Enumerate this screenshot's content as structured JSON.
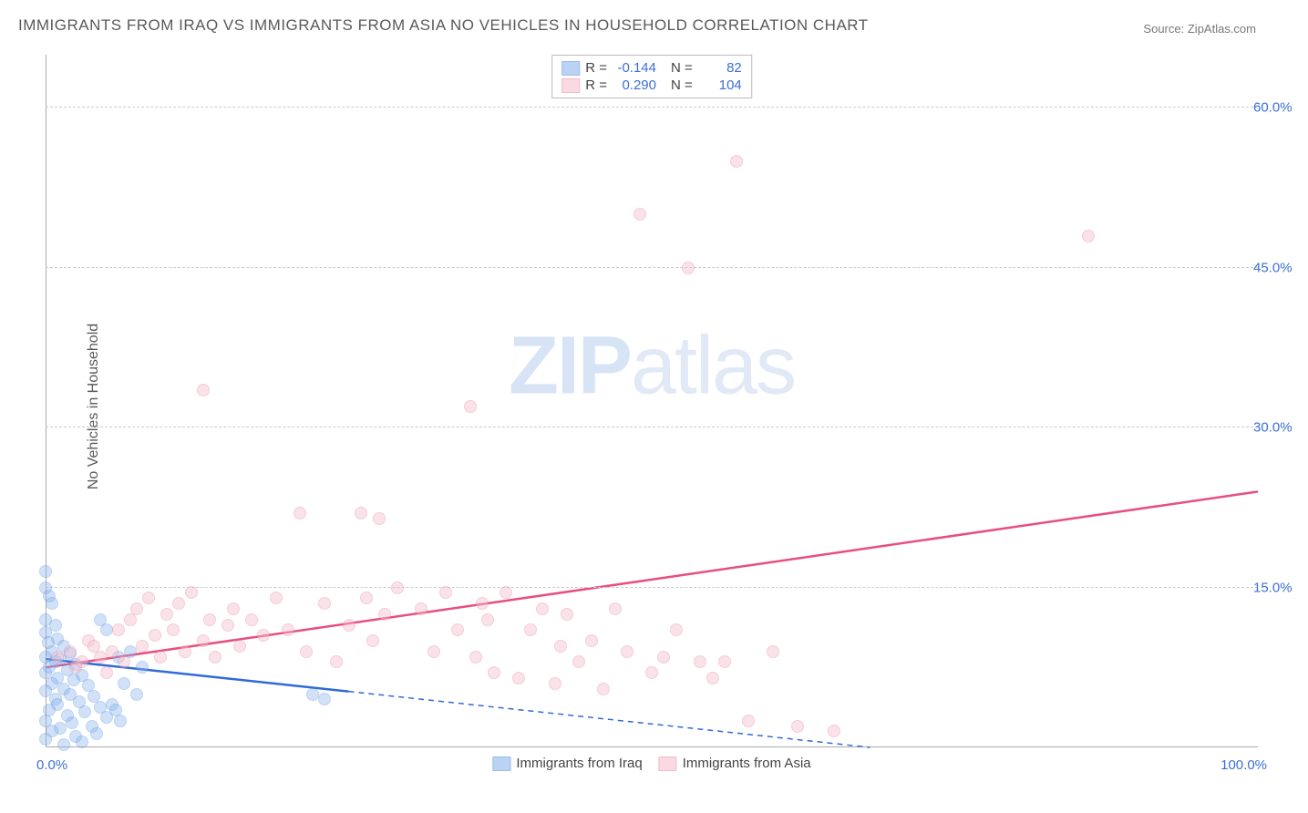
{
  "title": "IMMIGRANTS FROM IRAQ VS IMMIGRANTS FROM ASIA NO VEHICLES IN HOUSEHOLD CORRELATION CHART",
  "source_label": "Source:",
  "source_value": "ZipAtlas.com",
  "ylabel": "No Vehicles in Household",
  "watermark_bold": "ZIP",
  "watermark_rest": "atlas",
  "chart": {
    "type": "scatter",
    "xlim": [
      0,
      100
    ],
    "ylim": [
      0,
      65
    ],
    "xtick_min_label": "0.0%",
    "xtick_max_label": "100.0%",
    "yticks": [
      15.0,
      30.0,
      45.0,
      60.0
    ],
    "ytick_labels": [
      "15.0%",
      "30.0%",
      "45.0%",
      "60.0%"
    ],
    "grid_color": "#cccccc",
    "axis_color": "#aaaaaa",
    "background_color": "#ffffff",
    "marker_radius": 7,
    "series": [
      {
        "name": "Immigrants from Iraq",
        "fill_color": "#8db5ee",
        "fill_opacity": 0.4,
        "stroke_color": "#5a92e0",
        "line_color": "#2f6bd6",
        "line_dash": "6,5",
        "line_solid_until_x": 25,
        "R_label": "R =",
        "R_value": "-0.144",
        "N_label": "N =",
        "N_value": "82",
        "trend": {
          "x1": 0,
          "y1": 8.3,
          "x2": 68,
          "y2": 0
        },
        "points": [
          [
            0,
            16.5
          ],
          [
            0,
            15.0
          ],
          [
            0.3,
            14.2
          ],
          [
            0.5,
            13.5
          ],
          [
            0,
            12.0
          ],
          [
            0.8,
            11.5
          ],
          [
            0,
            10.8
          ],
          [
            1,
            10.2
          ],
          [
            0.2,
            9.8
          ],
          [
            1.5,
            9.5
          ],
          [
            0.5,
            9.0
          ],
          [
            2,
            8.8
          ],
          [
            0,
            8.5
          ],
          [
            1.2,
            8.3
          ],
          [
            0.8,
            8.0
          ],
          [
            2.5,
            7.8
          ],
          [
            0.3,
            7.5
          ],
          [
            1.8,
            7.3
          ],
          [
            0,
            7.0
          ],
          [
            3,
            6.8
          ],
          [
            1,
            6.5
          ],
          [
            2.3,
            6.3
          ],
          [
            0.5,
            6.0
          ],
          [
            3.5,
            5.8
          ],
          [
            1.5,
            5.5
          ],
          [
            0,
            5.3
          ],
          [
            2,
            5.0
          ],
          [
            4,
            4.8
          ],
          [
            0.8,
            4.5
          ],
          [
            2.8,
            4.3
          ],
          [
            1,
            4.0
          ],
          [
            4.5,
            3.8
          ],
          [
            0.3,
            3.5
          ],
          [
            3.2,
            3.3
          ],
          [
            1.8,
            3.0
          ],
          [
            5,
            2.8
          ],
          [
            0,
            2.5
          ],
          [
            2.2,
            2.3
          ],
          [
            3.8,
            2.0
          ],
          [
            1.2,
            1.8
          ],
          [
            0.5,
            1.5
          ],
          [
            4.2,
            1.3
          ],
          [
            2.5,
            1.0
          ],
          [
            0,
            0.8
          ],
          [
            3,
            0.5
          ],
          [
            1.5,
            0.3
          ],
          [
            5.5,
            4.0
          ],
          [
            6,
            8.5
          ],
          [
            5,
            11.0
          ],
          [
            6.5,
            6.0
          ],
          [
            7,
            9.0
          ],
          [
            4.5,
            12.0
          ],
          [
            5.8,
            3.5
          ],
          [
            7.5,
            5.0
          ],
          [
            8,
            7.5
          ],
          [
            6.2,
            2.5
          ],
          [
            22,
            5.0
          ],
          [
            23,
            4.5
          ]
        ]
      },
      {
        "name": "Immigrants from Asia",
        "fill_color": "#f6c0cf",
        "fill_opacity": 0.45,
        "stroke_color": "#ec8faa",
        "line_color": "#e84e7e",
        "line_dash": "",
        "line_solid_until_x": 100,
        "R_label": "R =",
        "R_value": "0.290",
        "N_label": "N =",
        "N_value": "104",
        "trend": {
          "x1": 0,
          "y1": 7.5,
          "x2": 100,
          "y2": 24.0
        },
        "points": [
          [
            1,
            8.5
          ],
          [
            2,
            9.0
          ],
          [
            2.5,
            7.5
          ],
          [
            3,
            8.0
          ],
          [
            3.5,
            10.0
          ],
          [
            4,
            9.5
          ],
          [
            4.5,
            8.5
          ],
          [
            5,
            7.0
          ],
          [
            5.5,
            9.0
          ],
          [
            6,
            11.0
          ],
          [
            6.5,
            8.0
          ],
          [
            7,
            12.0
          ],
          [
            7.5,
            13.0
          ],
          [
            8,
            9.5
          ],
          [
            8.5,
            14.0
          ],
          [
            9,
            10.5
          ],
          [
            9.5,
            8.5
          ],
          [
            10,
            12.5
          ],
          [
            10.5,
            11.0
          ],
          [
            11,
            13.5
          ],
          [
            11.5,
            9.0
          ],
          [
            12,
            14.5
          ],
          [
            13,
            10.0
          ],
          [
            13.5,
            12.0
          ],
          [
            14,
            8.5
          ],
          [
            15,
            11.5
          ],
          [
            15.5,
            13.0
          ],
          [
            16,
            9.5
          ],
          [
            17,
            12.0
          ],
          [
            18,
            10.5
          ],
          [
            19,
            14.0
          ],
          [
            20,
            11.0
          ],
          [
            21,
            22.0
          ],
          [
            21.5,
            9.0
          ],
          [
            23,
            13.5
          ],
          [
            24,
            8.0
          ],
          [
            25,
            11.5
          ],
          [
            26,
            22.0
          ],
          [
            26.5,
            14.0
          ],
          [
            27,
            10.0
          ],
          [
            27.5,
            21.5
          ],
          [
            28,
            12.5
          ],
          [
            29,
            15.0
          ],
          [
            31,
            13.0
          ],
          [
            32,
            9.0
          ],
          [
            33,
            14.5
          ],
          [
            34,
            11.0
          ],
          [
            35,
            32.0
          ],
          [
            35.5,
            8.5
          ],
          [
            36,
            13.5
          ],
          [
            36.5,
            12.0
          ],
          [
            37,
            7.0
          ],
          [
            38,
            14.5
          ],
          [
            39,
            6.5
          ],
          [
            40,
            11.0
          ],
          [
            41,
            13.0
          ],
          [
            42,
            6.0
          ],
          [
            42.5,
            9.5
          ],
          [
            43,
            12.5
          ],
          [
            44,
            8.0
          ],
          [
            45,
            10.0
          ],
          [
            46,
            5.5
          ],
          [
            47,
            13.0
          ],
          [
            48,
            9.0
          ],
          [
            49,
            50.0
          ],
          [
            50,
            7.0
          ],
          [
            51,
            8.5
          ],
          [
            52,
            11.0
          ],
          [
            53,
            45.0
          ],
          [
            54,
            8.0
          ],
          [
            55,
            6.5
          ],
          [
            56,
            8.0
          ],
          [
            57,
            55.0
          ],
          [
            58,
            2.5
          ],
          [
            60,
            9.0
          ],
          [
            62,
            2.0
          ],
          [
            65,
            1.5
          ],
          [
            86,
            48.0
          ],
          [
            13,
            33.5
          ]
        ]
      }
    ]
  },
  "legend_bottom": [
    {
      "key": 0,
      "label": "Immigrants from Iraq"
    },
    {
      "key": 1,
      "label": "Immigrants from Asia"
    }
  ]
}
